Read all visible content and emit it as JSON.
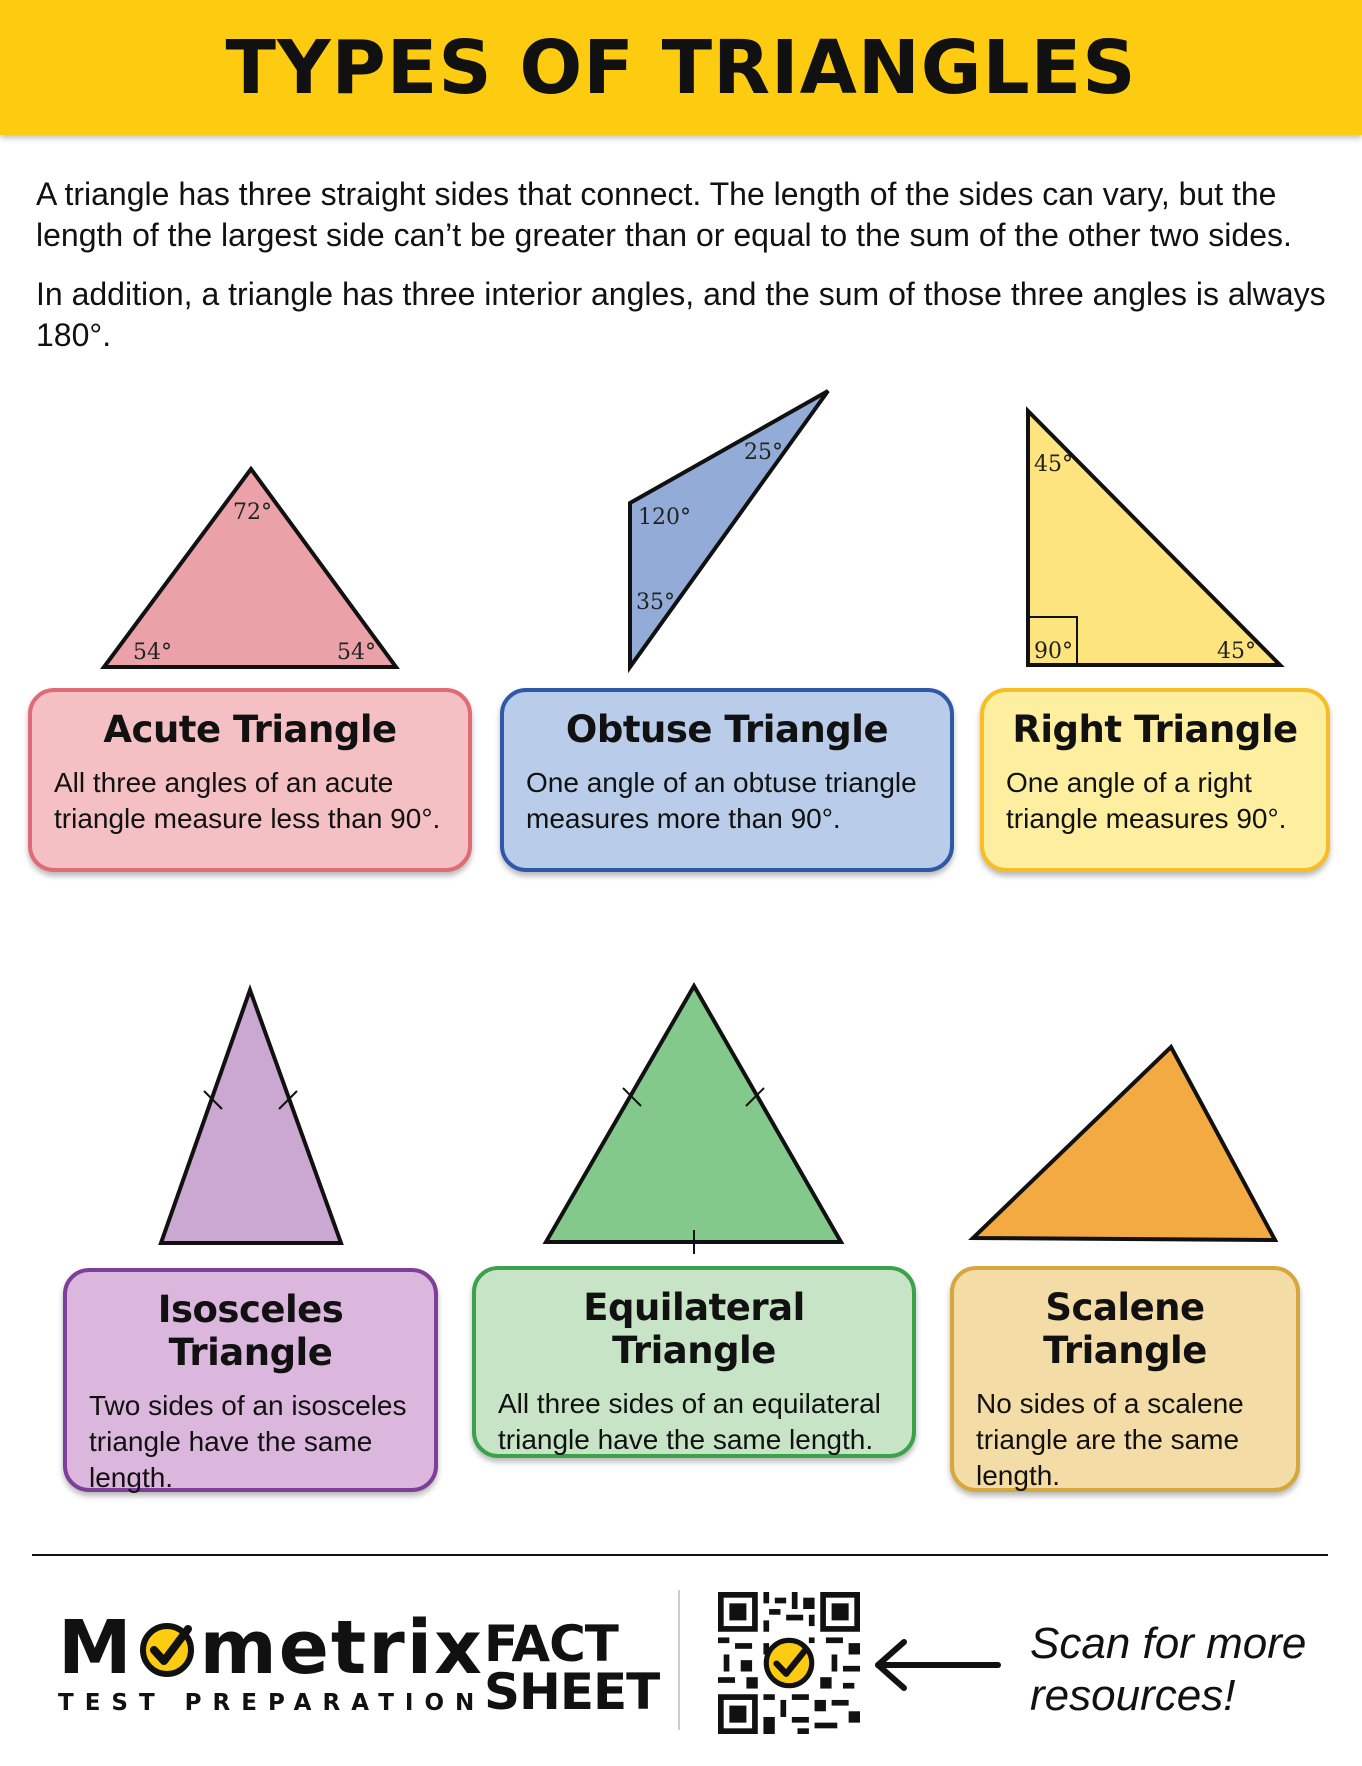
{
  "header": {
    "title": "TYPES OF TRIANGLES"
  },
  "intro": {
    "p1": "A triangle has three straight sides that connect. The length of the sides can vary, but the length of the largest side can’t be greater than or equal to the sum of the other two sides.",
    "p2": "In addition, a triangle has three interior angles, and the sum of those three angles is always 180°."
  },
  "triangles": {
    "acute": {
      "title": "Acute Triangle",
      "desc": "All three angles of an acute triangle measure less than 90°.",
      "angles": [
        "72°",
        "54°",
        "54°"
      ],
      "color": "#eaa2a8",
      "border": "#e06a76",
      "bg": "#f4c0c4"
    },
    "obtuse": {
      "title": "Obtuse Triangle",
      "desc": "One angle of an obtuse triangle measures more than 90°.",
      "angles": [
        "25°",
        "120°",
        "35°"
      ],
      "color": "#93acd7",
      "border": "#2f58a6",
      "bg": "#b9cce9"
    },
    "right": {
      "title": "Right Triangle",
      "desc": "One angle of a right triangle measures 90°.",
      "angles": [
        "45°",
        "90°",
        "45°"
      ],
      "color": "#fde47e",
      "border": "#f6bd25",
      "bg": "#fdef9f"
    },
    "isosceles": {
      "title": "Isosceles Triangle",
      "desc": "Two sides of an isosceles triangle have the same length.",
      "color": "#cba8d1",
      "border": "#7e3f98",
      "bg": "#dbb7dd"
    },
    "equilateral": {
      "title": "Equilateral Triangle",
      "desc": "All three sides of an equilateral triangle have the same length.",
      "color": "#83c98c",
      "border": "#3aa24a",
      "bg": "#c7e4c6"
    },
    "scalene": {
      "title": "Scalene Triangle",
      "desc": "No sides of a scalene triangle are the same length.",
      "color": "#f4aa42",
      "border": "#d7a63d",
      "bg": "#f3dca6"
    }
  },
  "footer": {
    "logo_prefix": "M",
    "logo_suffix": "metrix",
    "logo_sub": "TEST PREPARATION",
    "fact_line1": "FACT",
    "fact_line2": "SHEET",
    "scan_line1": "Scan for more",
    "scan_line2": "resources!"
  }
}
